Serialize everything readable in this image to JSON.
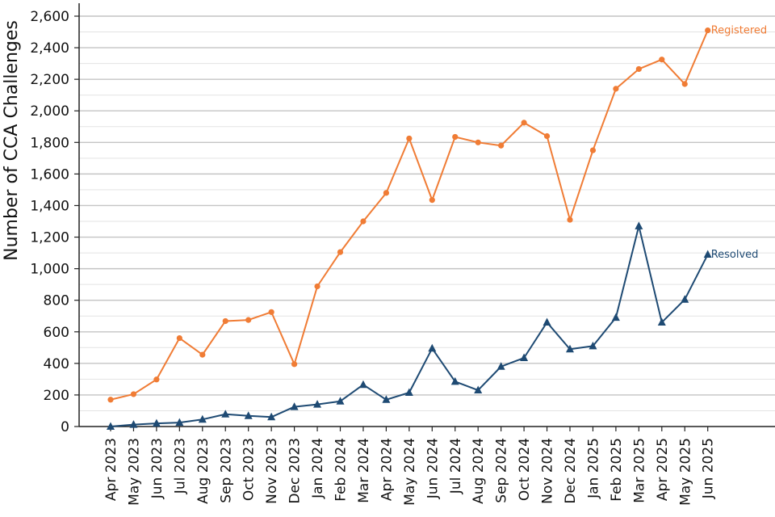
{
  "chart_data": {
    "type": "line",
    "title": "",
    "xlabel": "",
    "ylabel": "Number of CCA Challenges",
    "ylim": [
      0,
      2600
    ],
    "yticks": [
      0,
      200,
      400,
      600,
      800,
      1000,
      1200,
      1400,
      1600,
      1800,
      2000,
      2200,
      2400,
      2600
    ],
    "ytick_labels": [
      "0",
      "200",
      "400",
      "600",
      "800",
      "1,000",
      "1,200",
      "1,400",
      "1,600",
      "1,800",
      "2,000",
      "2,200",
      "2,400",
      "2,600"
    ],
    "grid": true,
    "legend": "direct labels at line ends",
    "categories": [
      "Apr 2023",
      "May 2023",
      "Jun 2023",
      "Jul 2023",
      "Aug 2023",
      "Sep 2023",
      "Oct 2023",
      "Nov 2023",
      "Dec 2023",
      "Jan 2024",
      "Feb 2024",
      "Mar 2024",
      "Apr 2024",
      "May 2024",
      "Jun 2024",
      "Jul 2024",
      "Aug 2024",
      "Sep 2024",
      "Oct 2024",
      "Nov 2024",
      "Dec 2024",
      "Jan 2025",
      "Feb 2025",
      "Mar 2025",
      "Apr 2025",
      "May 2025",
      "Jun 2025"
    ],
    "series": [
      {
        "name": "Registered",
        "color": "#f07c35",
        "marker": "circle",
        "values": [
          170,
          205,
          298,
          560,
          455,
          668,
          675,
          725,
          395,
          888,
          1105,
          1300,
          1480,
          1825,
          1435,
          1835,
          1800,
          1780,
          1925,
          1840,
          1310,
          1750,
          2140,
          2265,
          2325,
          2170,
          2510
        ]
      },
      {
        "name": "Resolved",
        "color": "#1e4a73",
        "marker": "triangle",
        "values": [
          0,
          12,
          20,
          25,
          45,
          78,
          68,
          60,
          125,
          140,
          160,
          265,
          170,
          215,
          495,
          285,
          230,
          380,
          435,
          660,
          490,
          510,
          690,
          1270,
          660,
          805,
          1090
        ]
      }
    ]
  }
}
